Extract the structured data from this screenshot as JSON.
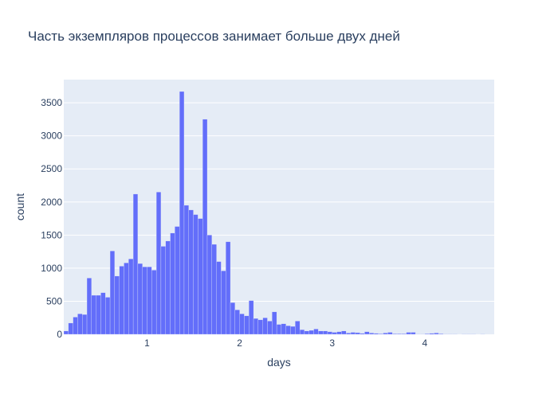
{
  "chart_data": {
    "type": "bar",
    "title": "Часть экземпляров процессов занимает больше двух дней",
    "xlabel": "days",
    "ylabel": "count",
    "x_range": [
      0.1,
      4.75
    ],
    "ylim": [
      0,
      3850
    ],
    "x_ticks": [
      1,
      2,
      3,
      4
    ],
    "y_ticks": [
      0,
      500,
      1000,
      1500,
      2000,
      2500,
      3000,
      3500
    ],
    "bin_start": 0.1,
    "bin_width": 0.05,
    "values": [
      50,
      170,
      260,
      310,
      300,
      850,
      590,
      590,
      630,
      560,
      1260,
      880,
      1030,
      1080,
      1140,
      2120,
      1070,
      1020,
      1020,
      970,
      2150,
      1330,
      1410,
      1530,
      1630,
      3670,
      1950,
      1880,
      1810,
      1750,
      3250,
      1500,
      1360,
      1100,
      960,
      1400,
      480,
      370,
      310,
      280,
      510,
      240,
      220,
      250,
      200,
      340,
      150,
      160,
      130,
      120,
      200,
      70,
      50,
      60,
      80,
      50,
      50,
      40,
      30,
      40,
      50,
      20,
      30,
      25,
      15,
      40,
      20,
      15,
      10,
      20,
      30,
      10,
      10,
      10,
      30,
      30,
      5,
      5,
      10,
      15,
      20,
      10,
      5,
      5,
      5,
      0,
      5,
      5,
      5,
      0,
      5,
      0
    ],
    "color": "#636efa",
    "plot_bg": "#e5ecf6",
    "grid": true
  }
}
